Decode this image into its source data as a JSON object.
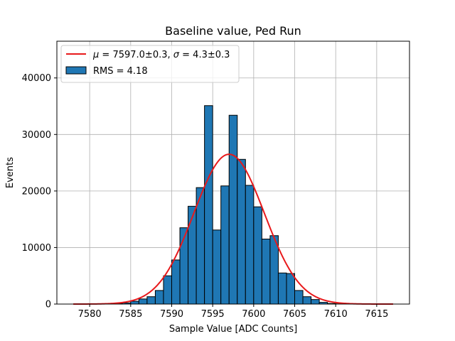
{
  "chart_data": {
    "type": "bar",
    "title": "Baseline value, Ped Run",
    "xlabel": "Sample Value [ADC Counts]",
    "ylabel": "Events",
    "xlim": [
      7576,
      7619
    ],
    "ylim": [
      0,
      46500
    ],
    "xticks": [
      7580,
      7585,
      7590,
      7595,
      7600,
      7605,
      7610,
      7615
    ],
    "yticks": [
      0,
      10000,
      20000,
      30000,
      40000
    ],
    "grid": true,
    "legend_position": "top-left",
    "bar_color": "#1f77b4",
    "fit_color": "#e8191b",
    "histogram": {
      "name": "RMS = 4.18",
      "bin_width": 1,
      "bin_starts": [
        7583,
        7584,
        7585,
        7586,
        7587,
        7588,
        7589,
        7590,
        7591,
        7592,
        7593,
        7594,
        7595,
        7596,
        7597,
        7598,
        7599,
        7600,
        7601,
        7602,
        7603,
        7604,
        7605,
        7606,
        7607,
        7608,
        7609,
        7610,
        7611
      ],
      "values": [
        80,
        200,
        500,
        900,
        1300,
        2400,
        5000,
        7800,
        13500,
        17300,
        20600,
        35100,
        13100,
        20900,
        33400,
        25600,
        21000,
        17200,
        11500,
        12100,
        5500,
        5400,
        2400,
        1300,
        800,
        300,
        100,
        40,
        10
      ]
    },
    "fit": {
      "type": "gaussian",
      "mu": 7597.0,
      "sigma": 4.3,
      "amplitude": 26500,
      "x_range": [
        7578,
        7617
      ],
      "legend_parts": {
        "mu_symbol": "μ",
        "mu_text": " = 7597.0±0.3, ",
        "sigma_symbol": "σ",
        "sigma_text": " = 4.3±0.3"
      }
    }
  }
}
